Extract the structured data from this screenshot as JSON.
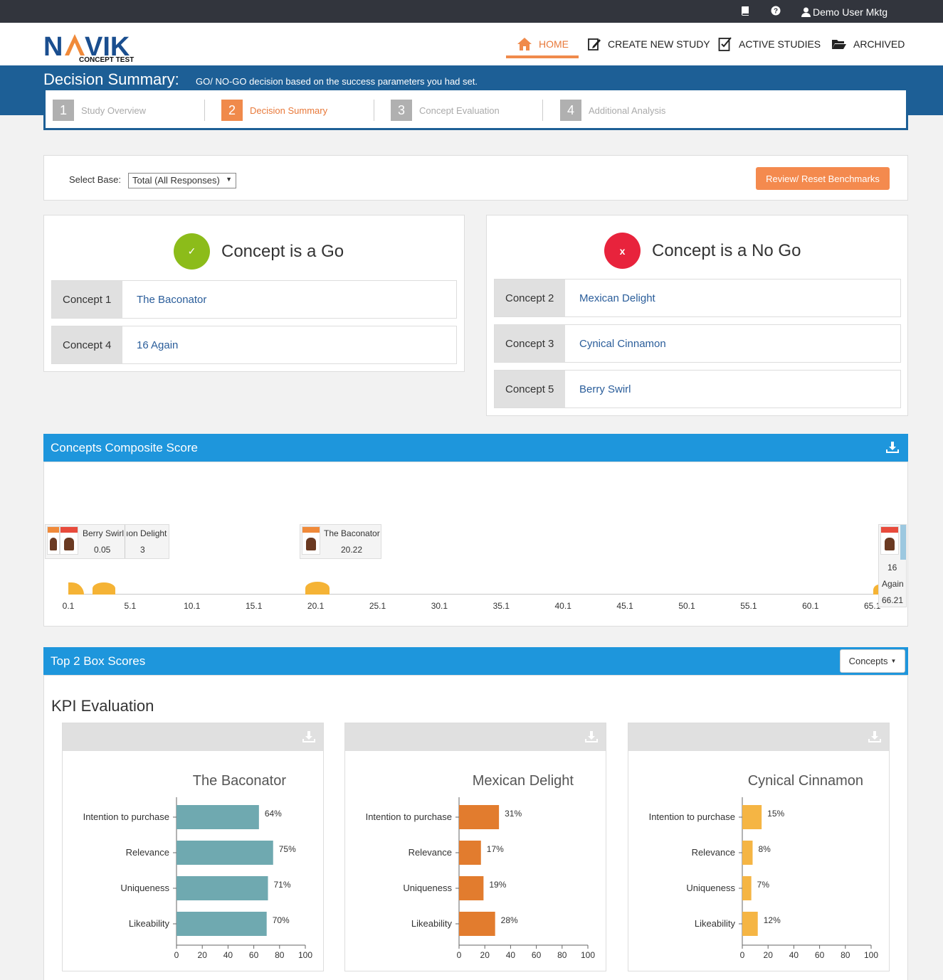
{
  "user": {
    "name": "Demo User Mktg"
  },
  "brand": {
    "name": "NAVIK",
    "tagline": "CONCEPT TEST"
  },
  "nav": [
    {
      "label": "HOME",
      "active": true,
      "icon": "home-icon"
    },
    {
      "label": "CREATE NEW STUDY",
      "icon": "edit-icon"
    },
    {
      "label": "ACTIVE STUDIES",
      "icon": "checklist-icon"
    },
    {
      "label": "ARCHIVED",
      "icon": "folder-open-icon"
    }
  ],
  "page": {
    "title": "Decision Summary:",
    "description": "GO/ NO-GO decision based on the success parameters you had set."
  },
  "steps": [
    {
      "num": "1",
      "label": "Study Overview"
    },
    {
      "num": "2",
      "label": "Decision Summary",
      "active": true
    },
    {
      "num": "3",
      "label": "Concept Evaluation"
    },
    {
      "num": "4",
      "label": "Additional Analysis"
    }
  ],
  "filters": {
    "select_base_label": "Select Base:",
    "select_base_value": "Total (All Responses)",
    "benchmark_button": "Review/ Reset Benchmarks"
  },
  "go": {
    "icon": "✓",
    "title": "Concept is a Go",
    "rows": [
      {
        "label": "Concept 1",
        "value": "The Baconator"
      },
      {
        "label": "Concept 4",
        "value": "16 Again"
      }
    ]
  },
  "nogo": {
    "icon": "x",
    "title": "Concept is a No Go",
    "rows": [
      {
        "label": "Concept 2",
        "value": "Mexican Delight"
      },
      {
        "label": "Concept 3",
        "value": "Cynical Cinnamon"
      },
      {
        "label": "Concept 5",
        "value": "Berry Swirl"
      }
    ]
  },
  "composite": {
    "title": "Concepts Composite Score",
    "ticks": [
      "0.1",
      "5.1",
      "10.1",
      "15.1",
      "20.1",
      "25.1",
      "30.1",
      "35.1",
      "40.1",
      "45.1",
      "50.1",
      "55.1",
      "60.1",
      "65.1"
    ],
    "cards": {
      "berry_name": "Berry Swirl",
      "berry_score": "0.05",
      "mexican_partial": "ıon Delight",
      "mexican_partial_score": "3",
      "bacon_name": "The Baconator",
      "bacon_score": "20.22",
      "again_line1": "16",
      "again_line2": "Again",
      "again_score": "66.21"
    }
  },
  "top2": {
    "title": "Top 2 Box Scores",
    "dropdown": "Concepts",
    "kpi_title": "KPI Evaluation"
  },
  "colors": {
    "baconator": "#6fa9b0",
    "mexican": "#e27c2e",
    "cynical": "#f5b544",
    "go": "#8cbc1a",
    "nogo": "#e8233c"
  },
  "chart_data": [
    {
      "type": "bar",
      "title": "The Baconator",
      "categories": [
        "Intention to purchase",
        "Relevance",
        "Uniqueness",
        "Likeability"
      ],
      "values": [
        64,
        75,
        71,
        70
      ],
      "value_labels": [
        "64%",
        "75%",
        "71%",
        "70%"
      ],
      "xlim": [
        0,
        100
      ],
      "xticks": [
        "0",
        "20",
        "40",
        "60",
        "80",
        "100"
      ]
    },
    {
      "type": "bar",
      "title": "Mexican Delight",
      "categories": [
        "Intention to purchase",
        "Relevance",
        "Uniqueness",
        "Likeability"
      ],
      "values": [
        31,
        17,
        19,
        28
      ],
      "value_labels": [
        "31%",
        "17%",
        "19%",
        "28%"
      ],
      "xlim": [
        0,
        100
      ],
      "xticks": [
        "0",
        "20",
        "40",
        "60",
        "80",
        "100"
      ]
    },
    {
      "type": "bar",
      "title": "Cynical Cinnamon",
      "categories": [
        "Intention to purchase",
        "Relevance",
        "Uniqueness",
        "Likeability"
      ],
      "values": [
        15,
        8,
        7,
        12
      ],
      "value_labels": [
        "15%",
        "8%",
        "7%",
        "12%"
      ],
      "xlim": [
        0,
        100
      ],
      "xticks": [
        "0",
        "20",
        "40",
        "60",
        "80",
        "100"
      ]
    }
  ]
}
